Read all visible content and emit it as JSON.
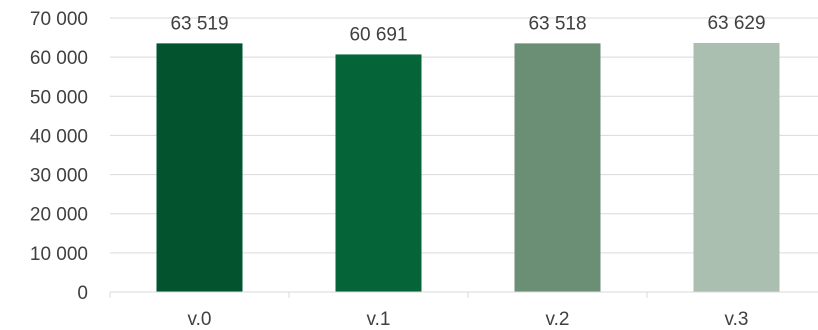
{
  "chart_data": {
    "type": "bar",
    "categories": [
      "v.0",
      "v.1",
      "v.2",
      "v.3"
    ],
    "values": [
      63519,
      60691,
      63518,
      63629
    ],
    "data_labels": [
      "63 519",
      "60 691",
      "63 518",
      "63 629"
    ],
    "y_ticks": [
      0,
      10000,
      20000,
      30000,
      40000,
      50000,
      60000,
      70000
    ],
    "y_tick_labels": [
      "0",
      "10 000",
      "20 000",
      "30 000",
      "40 000",
      "50 000",
      "60 000",
      "70 000"
    ],
    "ylim": [
      0,
      70000
    ],
    "grid": true,
    "legend": "none",
    "bar_colors": [
      "#03532F",
      "#056438",
      "#6A8F75",
      "#ABBFB1"
    ],
    "grid_color": "#D9D9D9",
    "text_color": "#404040"
  }
}
